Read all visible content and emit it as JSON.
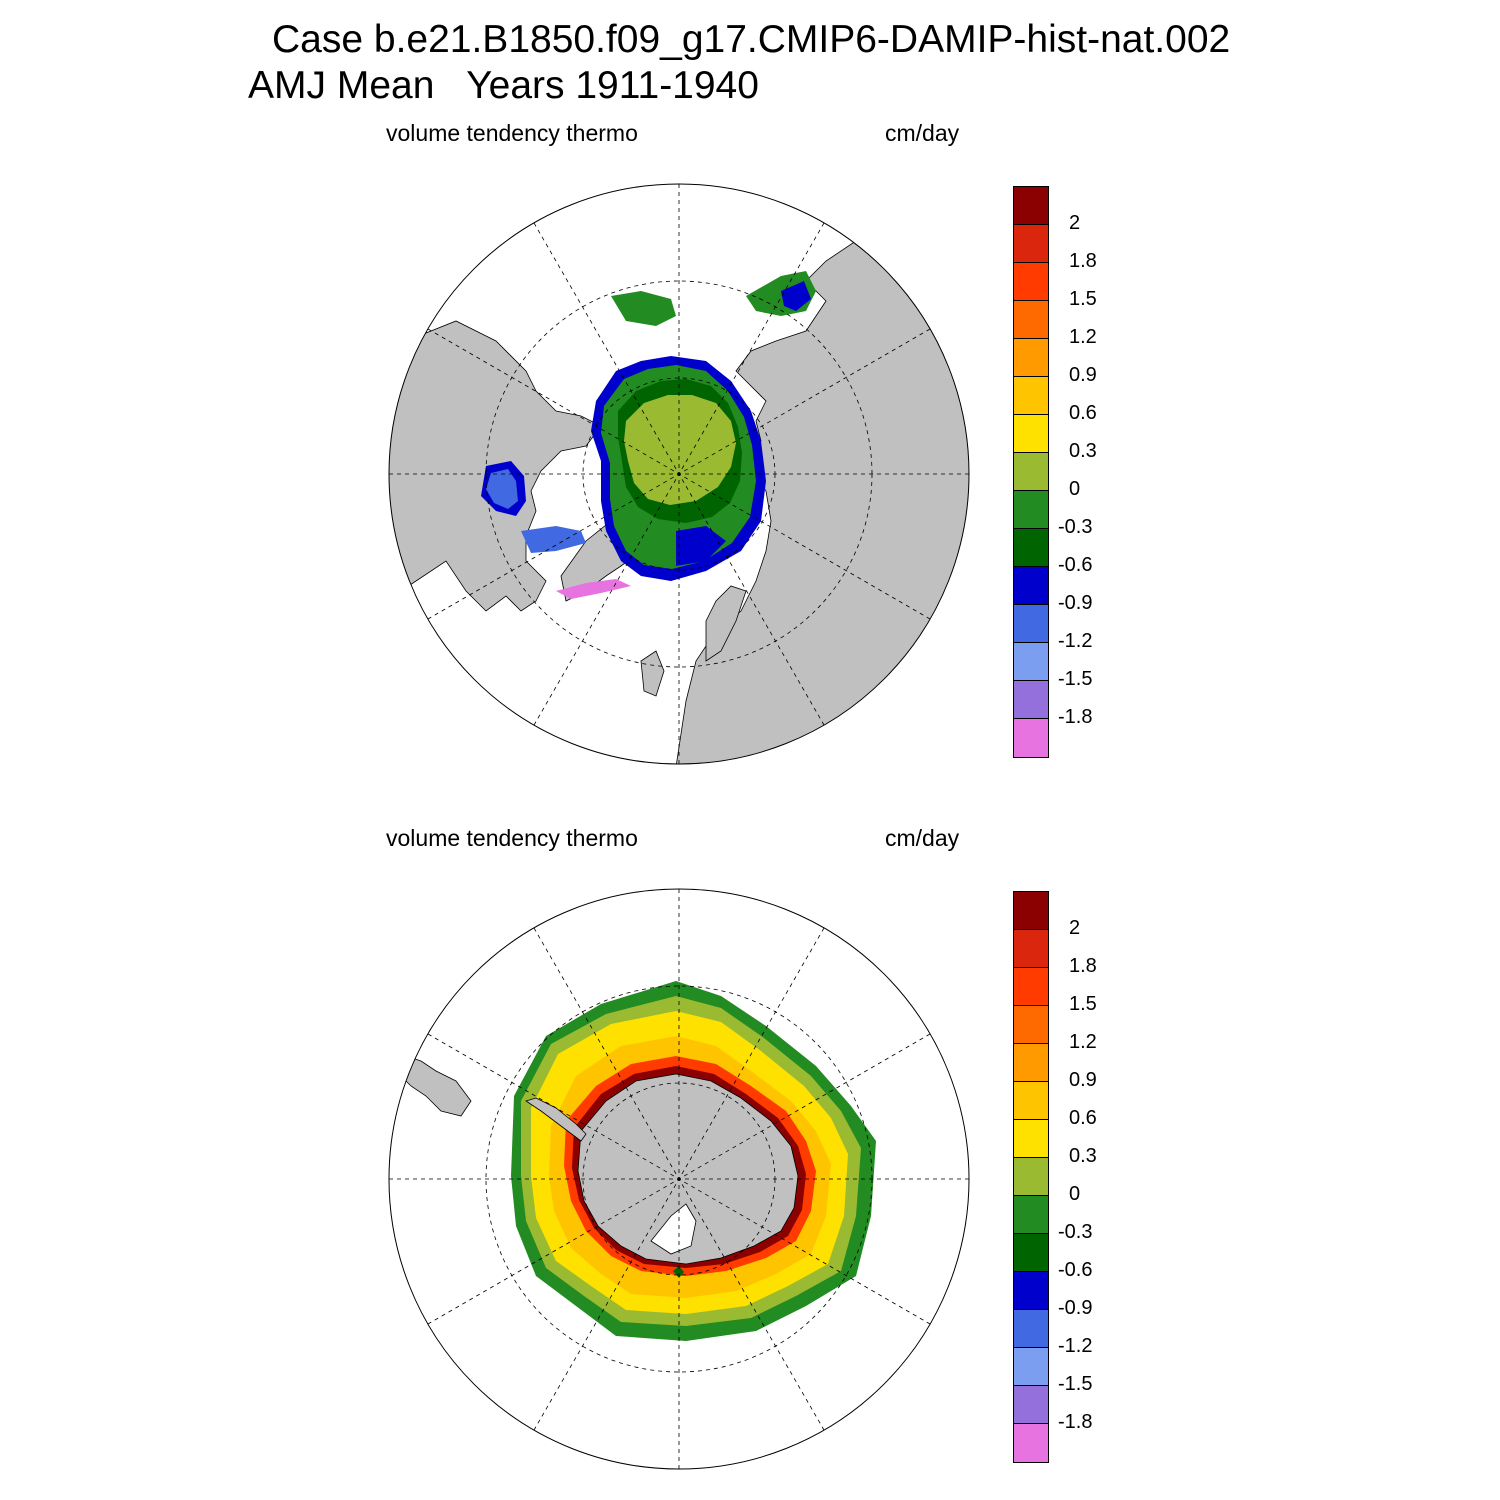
{
  "figure": {
    "title_line1": "Case b.e21.B1850.f09_g17.CMIP6-DAMIP-hist-nat.002",
    "title_line2": "AMJ Mean   Years 1911-1940"
  },
  "panels": [
    {
      "hemisphere": "north",
      "left_label": "volume tendency thermo",
      "right_label": "cm/day"
    },
    {
      "hemisphere": "south",
      "left_label": "volume tendency thermo",
      "right_label": "cm/day"
    }
  ],
  "colorbar": {
    "colors": [
      "#8b0000",
      "#d9260d",
      "#ff3b00",
      "#ff6a00",
      "#ff9a00",
      "#ffc400",
      "#ffe100",
      "#9aba32",
      "#228b22",
      "#006400",
      "#0000cd",
      "#4169e1",
      "#7b9ef0",
      "#9370db",
      "#e673e0"
    ],
    "tick_labels": [
      "2",
      "1.8",
      "1.5",
      "1.2",
      "0.9",
      "0.6",
      "0.3",
      "0",
      "-0.3",
      "-0.6",
      "-0.9",
      "-1.2",
      "-1.5",
      "-1.8"
    ]
  },
  "colors": {
    "land": "#c0c0c0",
    "ocean": "#ffffff"
  }
}
